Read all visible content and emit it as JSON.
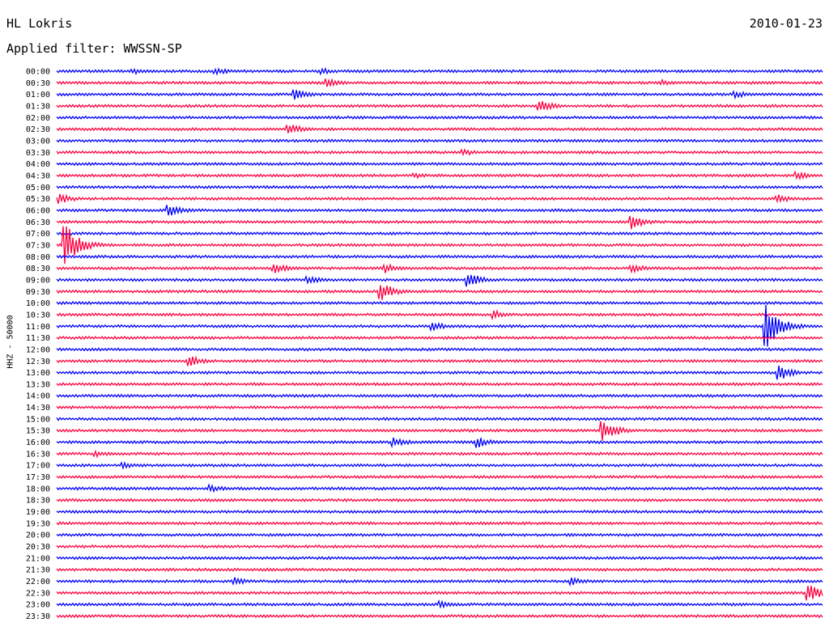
{
  "header": {
    "station": "HL Lokris",
    "date": "2010-01-23",
    "filter_label": "Applied filter: WWSSN-SP"
  },
  "chart_data": {
    "type": "line",
    "title": "HL Lokris",
    "subtitle": "Applied filter: WWSSN-SP",
    "ylabel": "HHZ - 50000",
    "xlabel": "",
    "x_range_minutes": [
      0,
      30
    ],
    "grid": false,
    "colors": [
      "#0000ff",
      "#ff0040"
    ],
    "row_labels": [
      "00:00",
      "00:30",
      "01:00",
      "01:30",
      "02:00",
      "02:30",
      "03:00",
      "03:30",
      "04:00",
      "04:30",
      "05:00",
      "05:30",
      "06:00",
      "06:30",
      "07:00",
      "07:30",
      "08:00",
      "08:30",
      "09:00",
      "09:30",
      "10:00",
      "10:30",
      "11:00",
      "11:30",
      "12:00",
      "12:30",
      "13:00",
      "13:30",
      "14:00",
      "14:30",
      "15:00",
      "15:30",
      "16:00",
      "16:30",
      "17:00",
      "17:30",
      "18:00",
      "18:30",
      "19:00",
      "19:30",
      "20:00",
      "20:30",
      "21:00",
      "21:30",
      "22:00",
      "22:30",
      "23:00",
      "23:30"
    ],
    "events": [
      {
        "row": 0,
        "minute": 3.0,
        "amplitude": 4
      },
      {
        "row": 0,
        "minute": 6.2,
        "amplitude": 5
      },
      {
        "row": 0,
        "minute": 10.4,
        "amplitude": 4
      },
      {
        "row": 1,
        "minute": 10.6,
        "amplitude": 6
      },
      {
        "row": 1,
        "minute": 23.7,
        "amplitude": 4
      },
      {
        "row": 2,
        "minute": 9.3,
        "amplitude": 7
      },
      {
        "row": 2,
        "minute": 26.6,
        "amplitude": 5
      },
      {
        "row": 3,
        "minute": 18.9,
        "amplitude": 8
      },
      {
        "row": 5,
        "minute": 9.1,
        "amplitude": 7
      },
      {
        "row": 7,
        "minute": 15.9,
        "amplitude": 5
      },
      {
        "row": 9,
        "minute": 14.0,
        "amplitude": 4
      },
      {
        "row": 9,
        "minute": 29.0,
        "amplitude": 5
      },
      {
        "row": 11,
        "minute": 0.1,
        "amplitude": 7
      },
      {
        "row": 11,
        "minute": 28.2,
        "amplitude": 6
      },
      {
        "row": 12,
        "minute": 4.4,
        "amplitude": 9
      },
      {
        "row": 13,
        "minute": 22.5,
        "amplitude": 10
      },
      {
        "row": 15,
        "minute": 0.3,
        "amplitude": 30
      },
      {
        "row": 17,
        "minute": 8.5,
        "amplitude": 7
      },
      {
        "row": 17,
        "minute": 12.9,
        "amplitude": 6
      },
      {
        "row": 17,
        "minute": 22.5,
        "amplitude": 6
      },
      {
        "row": 18,
        "minute": 9.8,
        "amplitude": 6
      },
      {
        "row": 18,
        "minute": 16.1,
        "amplitude": 10
      },
      {
        "row": 19,
        "minute": 12.7,
        "amplitude": 12
      },
      {
        "row": 21,
        "minute": 17.1,
        "amplitude": 7
      },
      {
        "row": 22,
        "minute": 14.7,
        "amplitude": 6
      },
      {
        "row": 22,
        "minute": 27.8,
        "amplitude": 28
      },
      {
        "row": 25,
        "minute": 5.2,
        "amplitude": 7
      },
      {
        "row": 26,
        "minute": 28.3,
        "amplitude": 10
      },
      {
        "row": 31,
        "minute": 21.4,
        "amplitude": 14
      },
      {
        "row": 32,
        "minute": 13.2,
        "amplitude": 7
      },
      {
        "row": 32,
        "minute": 16.5,
        "amplitude": 7
      },
      {
        "row": 33,
        "minute": 1.5,
        "amplitude": 5
      },
      {
        "row": 34,
        "minute": 2.6,
        "amplitude": 4
      },
      {
        "row": 36,
        "minute": 6.0,
        "amplitude": 5
      },
      {
        "row": 44,
        "minute": 7.0,
        "amplitude": 5
      },
      {
        "row": 44,
        "minute": 20.2,
        "amplitude": 5
      },
      {
        "row": 45,
        "minute": 29.4,
        "amplitude": 12
      },
      {
        "row": 46,
        "minute": 15.0,
        "amplitude": 5
      }
    ]
  }
}
